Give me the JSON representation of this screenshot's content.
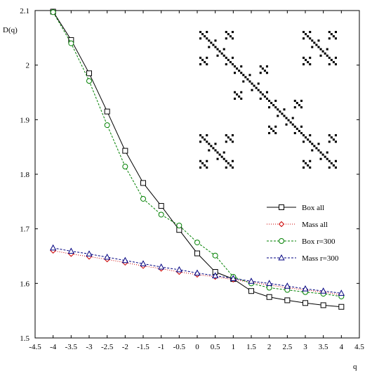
{
  "chart_data": {
    "type": "line",
    "ylabel": "D(q)",
    "xlabel": "q",
    "xlim": [
      -4.5,
      4.5
    ],
    "ylim": [
      1.5,
      2.1
    ],
    "xticks": [
      "-4.5",
      "-4",
      "-3.5",
      "-3",
      "-2.5",
      "-2",
      "-1.5",
      "-1",
      "-0.5",
      "0",
      "0.5",
      "1",
      "1.5",
      "2",
      "2.5",
      "3",
      "3.5",
      "4",
      "4.5"
    ],
    "yticks": [
      "1.5",
      "1.6",
      "1.7",
      "1.8",
      "1.9",
      "2",
      "2.1"
    ],
    "grid": false,
    "legend_position": "right-middle",
    "x": [
      -4,
      -3.5,
      -3,
      -2.5,
      -2,
      -1.5,
      -1,
      -0.5,
      0,
      0.5,
      1,
      1.5,
      2,
      2.5,
      3,
      3.5,
      4
    ],
    "series": [
      {
        "name": "Box all",
        "color": "#000000",
        "line_style": "solid",
        "marker": "square",
        "values": [
          2.098,
          2.046,
          1.985,
          1.915,
          1.843,
          1.784,
          1.742,
          1.698,
          1.655,
          1.621,
          1.608,
          1.586,
          1.575,
          1.569,
          1.564,
          1.56,
          1.557
        ]
      },
      {
        "name": "Mass all",
        "color": "#cc0000",
        "line_style": "dotted",
        "marker": "diamond",
        "values": [
          1.66,
          1.654,
          1.649,
          1.644,
          1.638,
          1.632,
          1.627,
          1.621,
          1.616,
          1.612,
          1.607,
          1.602,
          1.597,
          1.592,
          1.588,
          1.584,
          1.579
        ]
      },
      {
        "name": "Box r=300",
        "color": "#008000",
        "line_style": "dashed",
        "marker": "circle",
        "values": [
          2.097,
          2.04,
          1.971,
          1.89,
          1.814,
          1.755,
          1.726,
          1.706,
          1.675,
          1.651,
          1.612,
          1.6,
          1.592,
          1.588,
          1.584,
          1.581,
          1.576
        ]
      },
      {
        "name": "Mass r=300",
        "color": "#000080",
        "line_style": "dashed",
        "marker": "triangle",
        "values": [
          1.665,
          1.659,
          1.654,
          1.648,
          1.642,
          1.636,
          1.63,
          1.625,
          1.619,
          1.614,
          1.609,
          1.604,
          1.6,
          1.595,
          1.59,
          1.586,
          1.582
        ]
      }
    ],
    "inset": {
      "type": "fractal",
      "levels": 3,
      "color": "#000000"
    }
  }
}
